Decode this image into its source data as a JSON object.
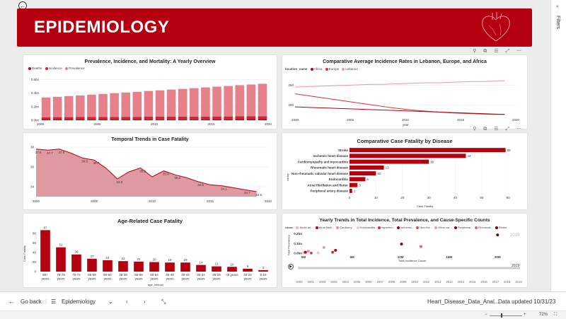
{
  "header": {
    "title": "EPIDEMIOLOGY"
  },
  "filters": {
    "label": "Filters"
  },
  "bottom_bar": {
    "go_back": "Go back",
    "page_name": "Epidemiology",
    "file_name": "Heart_Disease_Data_Anal...",
    "data_updated": "Data updated 10/31/23"
  },
  "status_bar": {
    "zoom": "72%"
  },
  "chart_data": [
    {
      "type": "bar",
      "stacked": true,
      "title": "Prevalence, Incidence, and Mortality: A Yearly Overview",
      "legend": [
        "Deaths",
        "Incidence",
        "Prevalence"
      ],
      "colors": [
        "#b5000f",
        "#d61f2e",
        "#e6808a"
      ],
      "x": [
        2000,
        2001,
        2002,
        2003,
        2004,
        2005,
        2006,
        2007,
        2008,
        2009,
        2010,
        2011,
        2012,
        2013,
        2014,
        2015,
        2016,
        2017,
        2018,
        2019
      ],
      "x_ticks": [
        "2000",
        "2005",
        "2010",
        "2015",
        "2020"
      ],
      "y_ticks": [
        "0.0bn",
        "0.2bn",
        "0.4bn",
        "0.6bn"
      ],
      "ylim": [
        0,
        0.7
      ],
      "series": [
        {
          "name": "Deaths",
          "values": [
            0.011,
            0.011,
            0.011,
            0.011,
            0.012,
            0.012,
            0.012,
            0.012,
            0.012,
            0.013,
            0.013,
            0.013,
            0.013,
            0.013,
            0.014,
            0.014,
            0.014,
            0.015,
            0.015,
            0.015
          ]
        },
        {
          "name": "Incidence",
          "values": [
            0.034,
            0.035,
            0.035,
            0.036,
            0.036,
            0.037,
            0.037,
            0.038,
            0.038,
            0.039,
            0.039,
            0.04,
            0.04,
            0.041,
            0.041,
            0.042,
            0.042,
            0.043,
            0.043,
            0.044
          ]
        },
        {
          "name": "Prevalence",
          "values": [
            0.29,
            0.3,
            0.31,
            0.32,
            0.33,
            0.34,
            0.35,
            0.36,
            0.37,
            0.38,
            0.39,
            0.4,
            0.41,
            0.42,
            0.43,
            0.44,
            0.45,
            0.46,
            0.47,
            0.48
          ]
        }
      ]
    },
    {
      "type": "line",
      "title": "Comparative Average Incidence Rates in Lebanon, Europe, and Africa",
      "legend_title": "location_name",
      "legend": [
        "Africa",
        "Europe",
        "Lebanon"
      ],
      "colors": [
        "#b5000f",
        "#d9303e",
        "#e89aa1"
      ],
      "xlabel": "year",
      "x_ticks": [
        "2000",
        "2005",
        "2010",
        "2015",
        "2020"
      ],
      "y_ticks": [
        "200",
        "250"
      ],
      "xlim": [
        2000,
        2020
      ],
      "ylim": [
        172,
        272
      ],
      "x": [
        2000,
        2001,
        2002,
        2003,
        2004,
        2005,
        2006,
        2007,
        2008,
        2009,
        2010,
        2011,
        2012,
        2013,
        2014,
        2015,
        2016,
        2017,
        2018,
        2019
      ],
      "series": [
        {
          "name": "Lebanon",
          "values": [
            245,
            246,
            247,
            248,
            249,
            250,
            251,
            252,
            252,
            253,
            254,
            255,
            256,
            256,
            257,
            258,
            259,
            259,
            260,
            261
          ]
        },
        {
          "name": "Europe",
          "values": [
            228,
            224,
            220,
            216,
            212,
            208,
            204,
            200,
            196,
            192,
            189,
            186,
            184,
            182,
            180,
            179,
            178,
            177,
            176,
            176
          ]
        },
        {
          "name": "Africa",
          "values": [
            195,
            194,
            193,
            192,
            191,
            190,
            189,
            188,
            187,
            186,
            185,
            184,
            183,
            182,
            181,
            180,
            179,
            178,
            177,
            176
          ]
        }
      ]
    },
    {
      "type": "area",
      "title": "Temporal Trends in Case Fatality",
      "color": "#b5000f",
      "fill": "#d98790",
      "x": [
        2000,
        2001,
        2002,
        2003,
        2004,
        2005,
        2006,
        2007,
        2008,
        2009,
        2010,
        2011,
        2012,
        2013,
        2014,
        2015,
        2016,
        2017,
        2018,
        2019
      ],
      "values": [
        37.8,
        37.7,
        37.8,
        37.4,
        36.9,
        36.7,
        35.9,
        34.8,
        35.5,
        35.9,
        35.0,
        35.6,
        35.2,
        34.9,
        34.5,
        34.2,
        34.1,
        33.9,
        33.7,
        33.5
      ],
      "data_labels": [
        37.8,
        37.7,
        37.8,
        null,
        36.9,
        36.7,
        null,
        34.8,
        null,
        35.9,
        null,
        35.6,
        35.2,
        null,
        34.5,
        null,
        34.1,
        null,
        33.7,
        33.5
      ],
      "x_ticks": [
        "2000",
        "2005",
        "2010",
        "2015",
        "2020"
      ],
      "y_ticks": [
        "34",
        "36",
        "38"
      ],
      "xlim": [
        2000,
        2020
      ],
      "ylim": [
        33,
        38
      ]
    },
    {
      "type": "bar",
      "orientation": "horizontal",
      "title": "Comparative Case Fatality by Disease",
      "color": "#b5000f",
      "xlabel": "Case Fatality",
      "ylabel": "cause",
      "categories": [
        "Stroke",
        "Ischemic heart disease",
        "Cardiomyopathy and myocarditis",
        "Rheumatic heart disease",
        "Non-rheumatic valvular heart disease",
        "Endocarditis",
        "Atrial fibrillation and flutter",
        "Peripheral artery disease"
      ],
      "values": [
        59,
        44,
        30,
        13,
        10,
        6,
        3,
        1
      ],
      "x_ticks": [
        "0",
        "10",
        "20",
        "30",
        "40",
        "50",
        "60"
      ],
      "xlim": [
        0,
        65
      ]
    },
    {
      "type": "bar",
      "title": "Age-Related Case Fatality",
      "color": "#b5000f",
      "xlabel": "age_interval",
      "ylabel": "Case Fatality",
      "categories": [
        "80+\nyears",
        "75-79\nyears",
        "70-74\nyears",
        "65-69\nyears",
        "60-64\nyears",
        "35-39\nyears",
        "55-59\nyears",
        "50-54\nyears",
        "45-49\nyears",
        "40-44\nyears",
        "30-34\nyears",
        "25-29\nyears",
        "<5 years",
        "20-24\nyears",
        "5-19\nyears"
      ],
      "values": [
        87,
        51,
        36,
        27,
        24,
        22,
        21,
        20,
        19,
        19,
        14,
        11,
        10,
        6,
        3
      ],
      "y_ticks": [
        "0",
        "20",
        "40",
        "60",
        "80"
      ],
      "ylim": [
        0,
        95
      ]
    },
    {
      "type": "scatter",
      "title": "Yearly Trends in Total Incidence, Total Prevalence, and Cause-Specific Counts",
      "legend_title": "cause",
      "legend": [
        "Aortic an...",
        "Atrial fibrill...",
        "Cardiomy...",
        "Endocarditis",
        "Hyperten...",
        "Ischemic...",
        "Non-rhe...",
        "Other car...",
        "Peripheral...",
        "Rheumati...",
        "Stroke"
      ],
      "colors": [
        "#f2b3b9",
        "#c0000f",
        "#e88b94",
        "#f5c6cb",
        "#d4303e",
        "#a8000d",
        "#c8505a",
        "#e0a0a6",
        "#8c000c",
        "#d96b74",
        "#7a0009"
      ],
      "xlabel": "Total Incidence Cause",
      "ylabel": "Total Prevalence",
      "x_ticks": [
        "0M",
        "5M",
        "10M",
        "15M",
        "20M"
      ],
      "y_ticks": [
        "0.0bn",
        "0.1bn",
        "0.2bn"
      ],
      "xlim": [
        0,
        21000000
      ],
      "ylim": [
        0,
        0.22
      ],
      "play_label": "2019",
      "watermark": "2019",
      "timeline": [
        "2000",
        "2001",
        "2002",
        "2003",
        "2004",
        "2005",
        "2006",
        "2007",
        "2008",
        "2009",
        "2010",
        "2011",
        "2012",
        "2013",
        "2014",
        "2015",
        "2016",
        "2017",
        "2018",
        "2019"
      ],
      "points": [
        {
          "x": 40000,
          "y": 0.005
        },
        {
          "x": 200000,
          "y": 0.01
        },
        {
          "x": 500000,
          "y": 0.02
        },
        {
          "x": 1500000,
          "y": 0.005
        },
        {
          "x": 3000000,
          "y": 0.01
        },
        {
          "x": 3300000,
          "y": 0.03
        },
        {
          "x": 800000,
          "y": 0.002
        },
        {
          "x": 2100000,
          "y": 0.06
        },
        {
          "x": 10100000,
          "y": 0.095
        },
        {
          "x": 12100000,
          "y": 0.07
        },
        {
          "x": 20000000,
          "y": 0.19
        }
      ]
    }
  ]
}
